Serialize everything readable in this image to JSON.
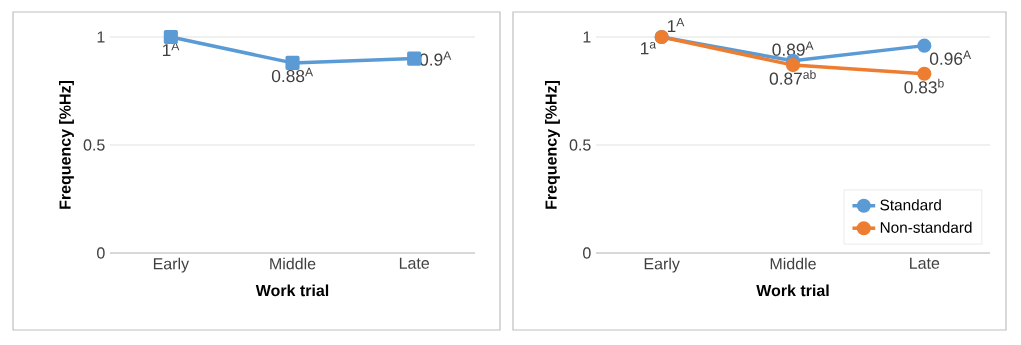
{
  "chart_data": [
    {
      "type": "line",
      "categories": [
        "Early",
        "Middle",
        "Late"
      ],
      "xlabel": "Work trial",
      "ylabel": "Frequency [%Hz]",
      "ylim": [
        0,
        1
      ],
      "yticks": [
        0,
        0.5,
        1
      ],
      "grid": "y",
      "marker": "square",
      "legend": false,
      "series": [
        {
          "color": "#5b9bd5",
          "values": [
            1,
            0.88,
            0.9
          ],
          "value_labels": [
            "1$^{A}$",
            "0.88$^{A}$",
            "0.9$^{A}$"
          ]
        }
      ]
    },
    {
      "type": "line",
      "categories": [
        "Early",
        "Middle",
        "Late"
      ],
      "xlabel": "Work trial",
      "ylabel": "Frequency [%Hz]",
      "ylim": [
        0,
        1
      ],
      "yticks": [
        0,
        0.5,
        1
      ],
      "grid": "y",
      "marker": "circle",
      "legend": "bottom right",
      "series": [
        {
          "name": "Standard",
          "color": "#5b9bd5",
          "values": [
            1,
            0.89,
            0.96
          ],
          "value_labels": [
            "1$^{A}$",
            "0.89$^{A}$",
            "0.96$^{A}$"
          ]
        },
        {
          "name": "Non-standard",
          "color": "#ed7d31",
          "values": [
            1,
            0.87,
            0.83
          ],
          "value_labels": [
            "1$^{a}$",
            "0.87$^{ab}$",
            "0.83$^{b}$"
          ]
        }
      ]
    }
  ]
}
